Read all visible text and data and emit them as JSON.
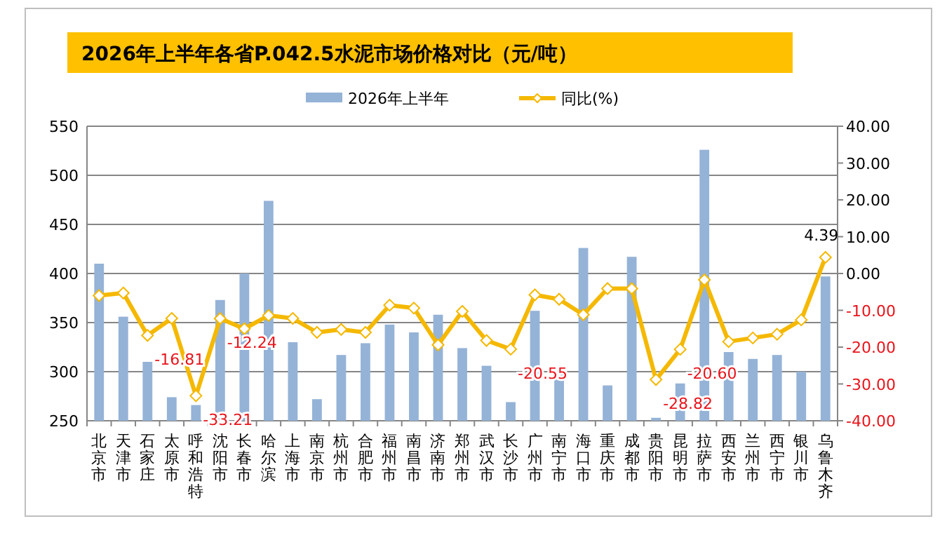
{
  "chart_data": {
    "type": "bar",
    "title": "2026年上半年各省P.042.5水泥市场价格对比（元/吨）",
    "categories": [
      "北京市",
      "天津市",
      "石家庄",
      "太原市",
      "呼和浩特",
      "沈阳市",
      "长春市",
      "哈尔滨",
      "上海市",
      "南京市",
      "杭州市",
      "合肥市",
      "福州市",
      "南昌市",
      "济南市",
      "郑州市",
      "武汉市",
      "长沙市",
      "广州市",
      "南宁市",
      "海口市",
      "重庆市",
      "成都市",
      "贵阳市",
      "昆明市",
      "拉萨市",
      "西安市",
      "兰州市",
      "西宁市",
      "银川市",
      "乌鲁木齐"
    ],
    "series": [
      {
        "name": "2026年上半年",
        "color": "#95b3d7",
        "values": [
          410,
          356,
          310,
          274,
          266,
          373,
          400,
          474,
          330,
          272,
          317,
          329,
          348,
          340,
          358,
          324,
          306,
          269,
          362,
          300,
          426,
          286,
          417,
          253,
          288,
          526,
          320,
          313,
          317,
          300,
          397
        ]
      },
      {
        "name": "同比(%)",
        "type": "line",
        "axis": "y2",
        "color": "#f5b800",
        "marker": "diamond",
        "values": [
          -6.0,
          -5.3,
          -16.81,
          -12.2,
          -33.21,
          -12.24,
          -15.0,
          -11.4,
          -12.2,
          -16.0,
          -15.2,
          -16.0,
          -8.6,
          -9.4,
          -19.4,
          -10.3,
          -18.2,
          -20.55,
          -5.8,
          -7.0,
          -11.2,
          -4.1,
          -4.1,
          -28.82,
          -20.6,
          -1.7,
          -18.5,
          -17.5,
          -16.5,
          -12.6,
          4.39
        ],
        "value_labels": [
          null,
          null,
          "-16.81",
          null,
          "-33.21",
          "-12.24",
          null,
          null,
          null,
          null,
          null,
          null,
          null,
          null,
          null,
          null,
          null,
          "-20.55",
          null,
          null,
          null,
          null,
          null,
          "-28.82",
          "-20.60",
          null,
          null,
          null,
          null,
          null,
          "4.39"
        ]
      }
    ],
    "ylim": [
      250,
      550
    ],
    "yticks": [
      250,
      300,
      350,
      400,
      450,
      500,
      550
    ],
    "y2lim": [
      -40,
      40
    ],
    "y2ticks": [
      {
        "value": 40,
        "label": "40.00"
      },
      {
        "value": 30,
        "label": "30.00"
      },
      {
        "value": 20,
        "label": "20.00"
      },
      {
        "value": 10,
        "label": "10.00"
      },
      {
        "value": 0,
        "label": "0.00"
      },
      {
        "value": -10,
        "label": "-10.00"
      },
      {
        "value": -20,
        "label": "-20.00"
      },
      {
        "value": -30,
        "label": "-30.00"
      },
      {
        "value": -40,
        "label": "-40.00"
      }
    ],
    "grid": "y",
    "legend": "top"
  }
}
